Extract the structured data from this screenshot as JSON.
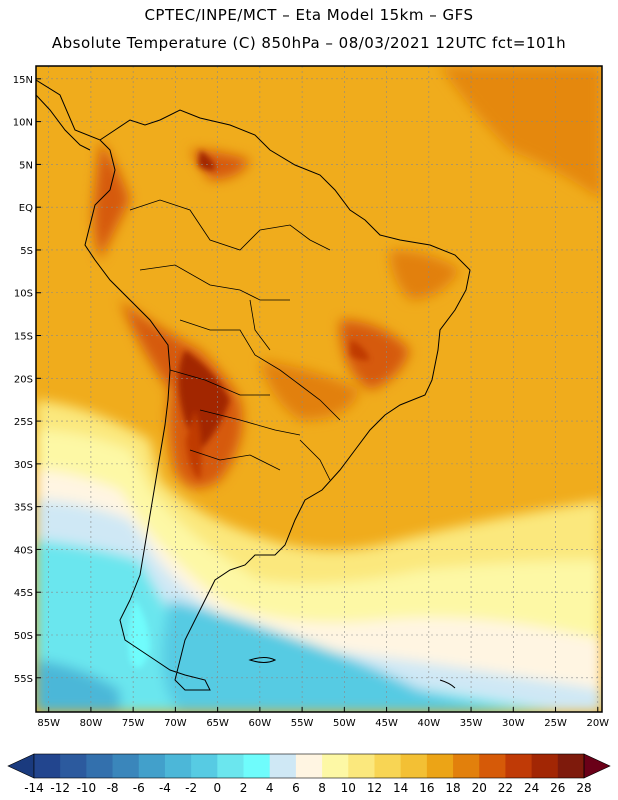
{
  "header": {
    "line1": "CPTEC/INPE/MCT –   Eta Model 15km – GFS",
    "line2": "Absolute Temperature (C) 850hPa – 08/03/2021 12UTC fct=101h"
  },
  "map": {
    "lat_labels": [
      "15N",
      "10N",
      "5N",
      "EQ",
      "5S",
      "10S",
      "15S",
      "20S",
      "25S",
      "30S",
      "35S",
      "40S",
      "45S",
      "50S",
      "55S"
    ],
    "lon_labels": [
      "85W",
      "80W",
      "75W",
      "70W",
      "65W",
      "60W",
      "55W",
      "50W",
      "45W",
      "40W",
      "35W",
      "30W",
      "25W",
      "20W"
    ],
    "lat_values": [
      15,
      10,
      5,
      0,
      -5,
      -10,
      -15,
      -20,
      -25,
      -30,
      -35,
      -40,
      -45,
      -50,
      -55
    ],
    "lon_values": [
      -85,
      -80,
      -75,
      -70,
      -65,
      -60,
      -55,
      -50,
      -45,
      -40,
      -35,
      -30,
      -25,
      -20
    ]
  },
  "colorbar": {
    "labels": [
      "-14",
      "-12",
      "-10",
      "-8",
      "-6",
      "-4",
      "-2",
      "0",
      "2",
      "4",
      "6",
      "8",
      "10",
      "12",
      "14",
      "16",
      "18",
      "20",
      "22",
      "24",
      "26",
      "28"
    ],
    "low_arrow_color": "#1a3a7e",
    "high_arrow_color": "#6a0018",
    "colors": [
      "#22458e",
      "#2c5a9e",
      "#3370ad",
      "#3a86bb",
      "#42a0cb",
      "#4cb7d8",
      "#57cbe3",
      "#6be6ee",
      "#6ffcfc",
      "#cfe8f5",
      "#fff5e2",
      "#fdf8a5",
      "#fbe87d",
      "#f8d554",
      "#f3c034",
      "#eca416",
      "#e2800c",
      "#d65a08",
      "#c03a06",
      "#a22604",
      "#7e1a0c"
    ]
  }
}
